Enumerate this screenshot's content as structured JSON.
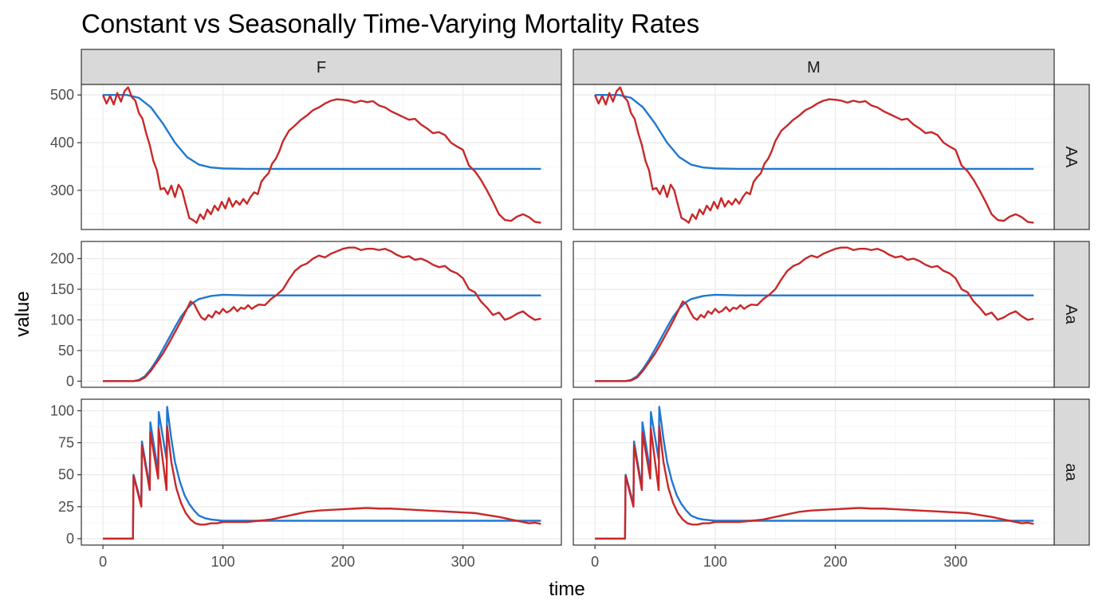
{
  "chart_data": {
    "type": "line",
    "title": "Constant vs Seasonally Time-Varying Mortality Rates",
    "xlabel": "time",
    "ylabel": "value",
    "facet_columns": [
      "F",
      "M"
    ],
    "facet_rows": [
      "AA",
      "Aa",
      "aa"
    ],
    "xlim": [
      -18,
      382
    ],
    "xticks": [
      0,
      100,
      200,
      300
    ],
    "colors": {
      "constant": "#1f78d1",
      "seasonal": "#c82828"
    },
    "panels": {
      "AA": {
        "ylim": [
          218,
          522
        ],
        "yticks": [
          300,
          400,
          500
        ],
        "series": [
          {
            "color_key": "constant",
            "x": [
              0,
              20,
              30,
              40,
              50,
              60,
              70,
              80,
              90,
              100,
              120,
              150,
              200,
              250,
              300,
              365
            ],
            "y": [
              500,
              500,
              494,
              474,
              440,
              400,
              370,
              354,
              348,
              346,
              345,
              345,
              345,
              345,
              345,
              345
            ]
          },
          {
            "color_key": "seasonal",
            "x": [
              0,
              3,
              6,
              9,
              12,
              15,
              18,
              21,
              24,
              27,
              30,
              33,
              36,
              39,
              42,
              45,
              48,
              51,
              54,
              57,
              60,
              63,
              66,
              69,
              72,
              75,
              78,
              81,
              84,
              87,
              90,
              93,
              96,
              99,
              102,
              105,
              108,
              111,
              114,
              117,
              120,
              123,
              126,
              129,
              132,
              135,
              138,
              141,
              144,
              147,
              150,
              155,
              160,
              165,
              170,
              175,
              180,
              185,
              190,
              195,
              200,
              205,
              210,
              215,
              220,
              225,
              230,
              235,
              240,
              245,
              250,
              255,
              260,
              265,
              270,
              275,
              280,
              285,
              290,
              295,
              300,
              305,
              310,
              315,
              320,
              325,
              330,
              335,
              340,
              345,
              350,
              355,
              360,
              365
            ],
            "y": [
              500,
              482,
              498,
              480,
              504,
              486,
              508,
              516,
              496,
              488,
              462,
              450,
              420,
              395,
              362,
              342,
              302,
              305,
              292,
              310,
              286,
              312,
              300,
              270,
              242,
              238,
              232,
              250,
              240,
              260,
              250,
              268,
              258,
              276,
              262,
              284,
              266,
              278,
              270,
              282,
              272,
              286,
              296,
              292,
              318,
              328,
              336,
              356,
              366,
              382,
              403,
              425,
              436,
              448,
              457,
              468,
              474,
              482,
              488,
              491,
              490,
              488,
              484,
              488,
              485,
              487,
              478,
              474,
              466,
              460,
              454,
              448,
              450,
              438,
              430,
              420,
              422,
              416,
              400,
              392,
              385,
              352,
              340,
              322,
              300,
              276,
              250,
              238,
              236,
              245,
              250,
              244,
              234,
              232
            ]
          }
        ]
      },
      "Aa": {
        "ylim": [
          -10,
          228
        ],
        "yticks": [
          0,
          50,
          100,
          150,
          200
        ],
        "series": [
          {
            "color_key": "constant",
            "x": [
              0,
              25,
              30,
              35,
              40,
              45,
              50,
              55,
              60,
              65,
              70,
              75,
              80,
              90,
              100,
              120,
              150,
              200,
              250,
              300,
              365
            ],
            "y": [
              0,
              0,
              2,
              8,
              20,
              35,
              52,
              70,
              88,
              105,
              118,
              128,
              134,
              139,
              141,
              140,
              140,
              140,
              140,
              140,
              140
            ]
          },
          {
            "color_key": "seasonal",
            "x": [
              0,
              10,
              20,
              25,
              30,
              35,
              40,
              45,
              50,
              55,
              60,
              65,
              70,
              73,
              76,
              79,
              82,
              85,
              88,
              91,
              94,
              97,
              100,
              103,
              106,
              109,
              112,
              115,
              118,
              121,
              124,
              127,
              130,
              135,
              140,
              145,
              150,
              155,
              160,
              165,
              170,
              175,
              180,
              185,
              190,
              195,
              200,
              205,
              210,
              215,
              220,
              225,
              230,
              235,
              240,
              245,
              250,
              255,
              260,
              265,
              270,
              275,
              280,
              285,
              290,
              295,
              300,
              305,
              310,
              315,
              320,
              325,
              330,
              335,
              340,
              345,
              350,
              355,
              360,
              365
            ],
            "y": [
              0,
              0,
              0,
              0,
              1,
              6,
              17,
              31,
              45,
              62,
              80,
              98,
              118,
              130,
              126,
              114,
              104,
              100,
              108,
              104,
              114,
              110,
              118,
              112,
              115,
              121,
              114,
              120,
              118,
              124,
              118,
              122,
              125,
              124,
              134,
              141,
              150,
              166,
              180,
              188,
              192,
              200,
              205,
              202,
              208,
              212,
              216,
              218,
              218,
              214,
              216,
              216,
              214,
              216,
              212,
              206,
              202,
              204,
              198,
              200,
              196,
              190,
              186,
              188,
              180,
              176,
              168,
              150,
              145,
              130,
              120,
              108,
              112,
              100,
              104,
              110,
              114,
              106,
              100,
              102
            ]
          }
        ]
      },
      "aa": {
        "ylim": [
          -5,
          109
        ],
        "yticks": [
          0,
          25,
          50,
          75,
          100
        ],
        "series": [
          {
            "color_key": "constant",
            "x": [
              0,
              25,
              25.5,
              32,
              32.5,
              39,
              39.5,
              46,
              46.5,
              53,
              53.5,
              57,
              60,
              64,
              68,
              72,
              76,
              80,
              85,
              90,
              100,
              120,
              150,
              200,
              250,
              300,
              365
            ],
            "y": [
              0,
              0,
              50,
              27,
              76,
              40,
              91,
              52,
              99,
              62,
              103,
              78,
              60,
              45,
              34,
              27,
              22,
              18,
              16,
              15,
              14,
              14,
              14,
              14,
              14,
              14,
              14
            ],
            "breaks": [
              0,
              25,
              32,
              39,
              46,
              53
            ]
          },
          {
            "color_key": "seasonal",
            "x": [
              0,
              25,
              25.5,
              32,
              32.5,
              39,
              39.5,
              46,
              46.5,
              53,
              53.5,
              57,
              61,
              65,
              69,
              73,
              77,
              81,
              85,
              90,
              95,
              100,
              110,
              120,
              130,
              140,
              150,
              160,
              170,
              180,
              190,
              200,
              210,
              220,
              230,
              240,
              250,
              260,
              270,
              280,
              290,
              300,
              310,
              320,
              330,
              340,
              350,
              355,
              360,
              365
            ],
            "y": [
              0,
              0,
              49,
              25,
              73,
              38,
              83,
              47,
              86,
              38,
              88,
              60,
              40,
              28,
              20,
              15,
              12,
              11,
              11,
              12,
              12,
              13,
              13,
              13,
              14,
              15,
              17,
              19,
              21,
              22,
              22.5,
              23,
              23.5,
              24,
              23.5,
              23.5,
              23,
              22.5,
              22,
              21.5,
              21,
              20.5,
              20,
              18.5,
              17,
              15,
              13,
              12,
              12.5,
              11.5
            ]
          }
        ]
      }
    }
  }
}
